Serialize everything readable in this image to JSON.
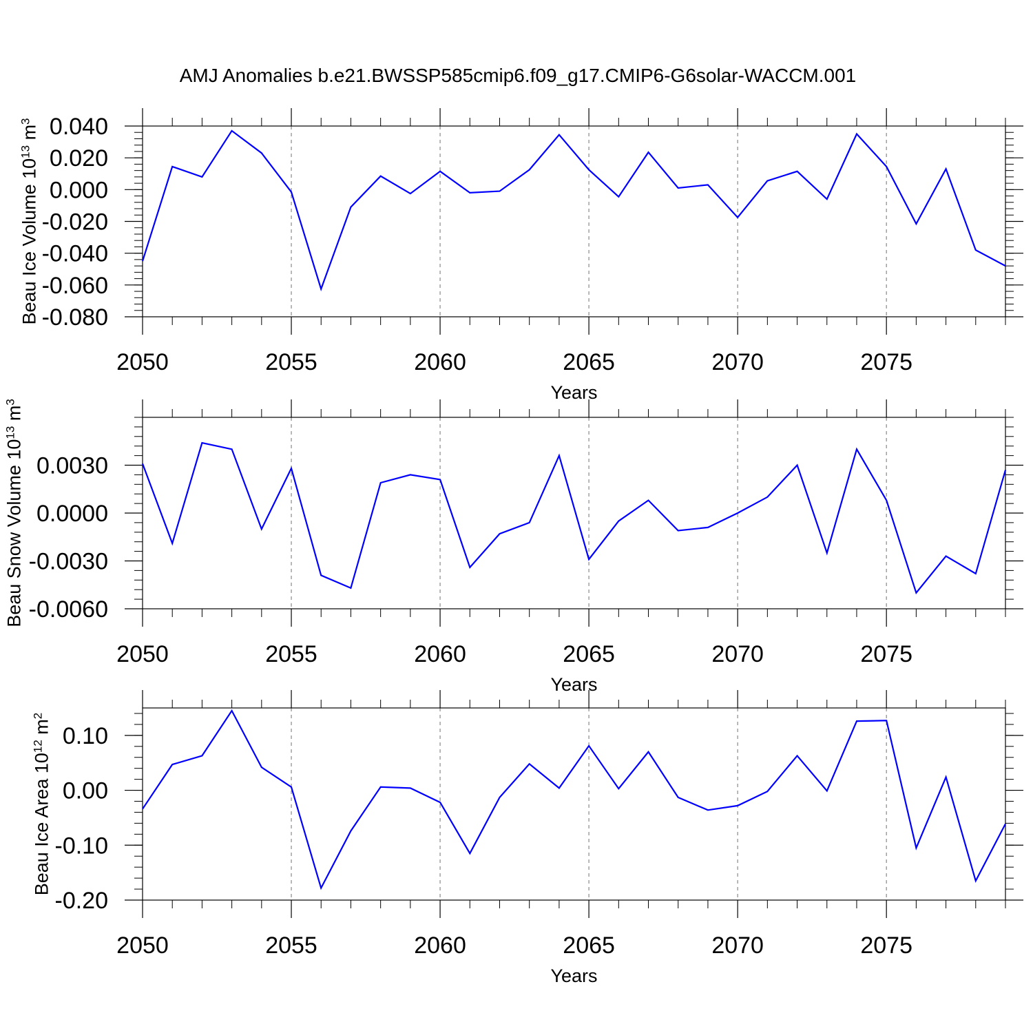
{
  "figure_title": "AMJ Anomalies b.e21.BWSSP585cmip6.f09_g17.CMIP6-G6solar-WACCM.001",
  "line_color": "#0000ff",
  "chart_data": [
    {
      "type": "line",
      "xlabel": "Years",
      "ylabel_main": "Beau Ice Volume 10",
      "ylabel_exp": "13",
      "ylabel_unit": " m",
      "ylabel_unit_exp": "3",
      "xlim": [
        2050,
        2079
      ],
      "ylim": [
        -0.08,
        0.04
      ],
      "yticks": [
        0.04,
        0.02,
        0.0,
        -0.02,
        -0.04,
        -0.06,
        -0.08
      ],
      "ytick_labels": [
        "0.040",
        "0.020",
        "0.000",
        "-0.020",
        "-0.040",
        "-0.060",
        "-0.080"
      ],
      "xticks": [
        2050,
        2055,
        2060,
        2065,
        2070,
        2075
      ],
      "xtick_labels": [
        "2050",
        "2055",
        "2060",
        "2065",
        "2070",
        "2075"
      ],
      "x": [
        2050,
        2051,
        2052,
        2053,
        2054,
        2055,
        2056,
        2057,
        2058,
        2059,
        2060,
        2061,
        2062,
        2063,
        2064,
        2065,
        2066,
        2067,
        2068,
        2069,
        2070,
        2071,
        2072,
        2073,
        2074,
        2075,
        2076,
        2077,
        2078,
        2079
      ],
      "series": [
        {
          "values": [
            -0.045,
            0.0145,
            0.008,
            0.037,
            0.023,
            -0.0015,
            -0.0625,
            -0.011,
            0.0085,
            -0.0025,
            0.0115,
            -0.002,
            -0.001,
            0.0125,
            0.0345,
            0.0125,
            -0.0045,
            0.0235,
            0.001,
            0.003,
            -0.0175,
            0.0055,
            0.0115,
            -0.006,
            0.035,
            0.0145,
            -0.0215,
            0.013,
            -0.038,
            -0.048
          ]
        }
      ]
    },
    {
      "type": "line",
      "xlabel": "Years",
      "ylabel_main": "Beau Snow Volume 10",
      "ylabel_exp": "13",
      "ylabel_unit": " m",
      "ylabel_unit_exp": "3",
      "xlim": [
        2050,
        2079
      ],
      "ylim": [
        -0.006,
        0.006
      ],
      "yticks": [
        0.003,
        0.0,
        -0.003,
        -0.006
      ],
      "ytick_labels": [
        "0.0030",
        "0.0000",
        "-0.0030",
        "-0.0060"
      ],
      "xticks": [
        2050,
        2055,
        2060,
        2065,
        2070,
        2075
      ],
      "xtick_labels": [
        "2050",
        "2055",
        "2060",
        "2065",
        "2070",
        "2075"
      ],
      "x": [
        2050,
        2051,
        2052,
        2053,
        2054,
        2055,
        2056,
        2057,
        2058,
        2059,
        2060,
        2061,
        2062,
        2063,
        2064,
        2065,
        2066,
        2067,
        2068,
        2069,
        2070,
        2071,
        2072,
        2073,
        2074,
        2075,
        2076,
        2077,
        2078,
        2079
      ],
      "series": [
        {
          "values": [
            0.0031,
            -0.0019,
            0.0044,
            0.004,
            -0.001,
            0.0028,
            -0.0039,
            -0.0047,
            0.0019,
            0.0024,
            0.0021,
            -0.0034,
            -0.0013,
            -0.0006,
            0.0036,
            -0.0029,
            -0.0005,
            0.0008,
            -0.0011,
            -0.0009,
            0.0,
            0.001,
            0.003,
            -0.0025,
            0.004,
            0.0008,
            -0.005,
            -0.0027,
            -0.0038,
            0.0027
          ]
        }
      ]
    },
    {
      "type": "line",
      "xlabel": "Years",
      "ylabel_main": "Beau Ice Area 10",
      "ylabel_exp": "12",
      "ylabel_unit": " m",
      "ylabel_unit_exp": "2",
      "xlim": [
        2050,
        2079
      ],
      "ylim": [
        -0.2,
        0.15
      ],
      "yticks": [
        0.1,
        0.0,
        -0.1,
        -0.2
      ],
      "ytick_labels": [
        "0.10",
        "0.00",
        "-0.10",
        "-0.20"
      ],
      "xticks": [
        2050,
        2055,
        2060,
        2065,
        2070,
        2075
      ],
      "xtick_labels": [
        "2050",
        "2055",
        "2060",
        "2065",
        "2070",
        "2075"
      ],
      "x": [
        2050,
        2051,
        2052,
        2053,
        2054,
        2055,
        2056,
        2057,
        2058,
        2059,
        2060,
        2061,
        2062,
        2063,
        2064,
        2065,
        2066,
        2067,
        2068,
        2069,
        2070,
        2071,
        2072,
        2073,
        2074,
        2075,
        2076,
        2077,
        2078,
        2079
      ],
      "series": [
        {
          "values": [
            -0.034,
            0.047,
            0.063,
            0.145,
            0.042,
            0.006,
            -0.178,
            -0.074,
            0.006,
            0.004,
            -0.022,
            -0.115,
            -0.013,
            0.048,
            0.004,
            0.081,
            0.003,
            0.07,
            -0.013,
            -0.036,
            -0.028,
            -0.002,
            0.063,
            -0.001,
            0.126,
            0.127,
            -0.105,
            0.024,
            -0.165,
            -0.061
          ]
        }
      ]
    }
  ]
}
